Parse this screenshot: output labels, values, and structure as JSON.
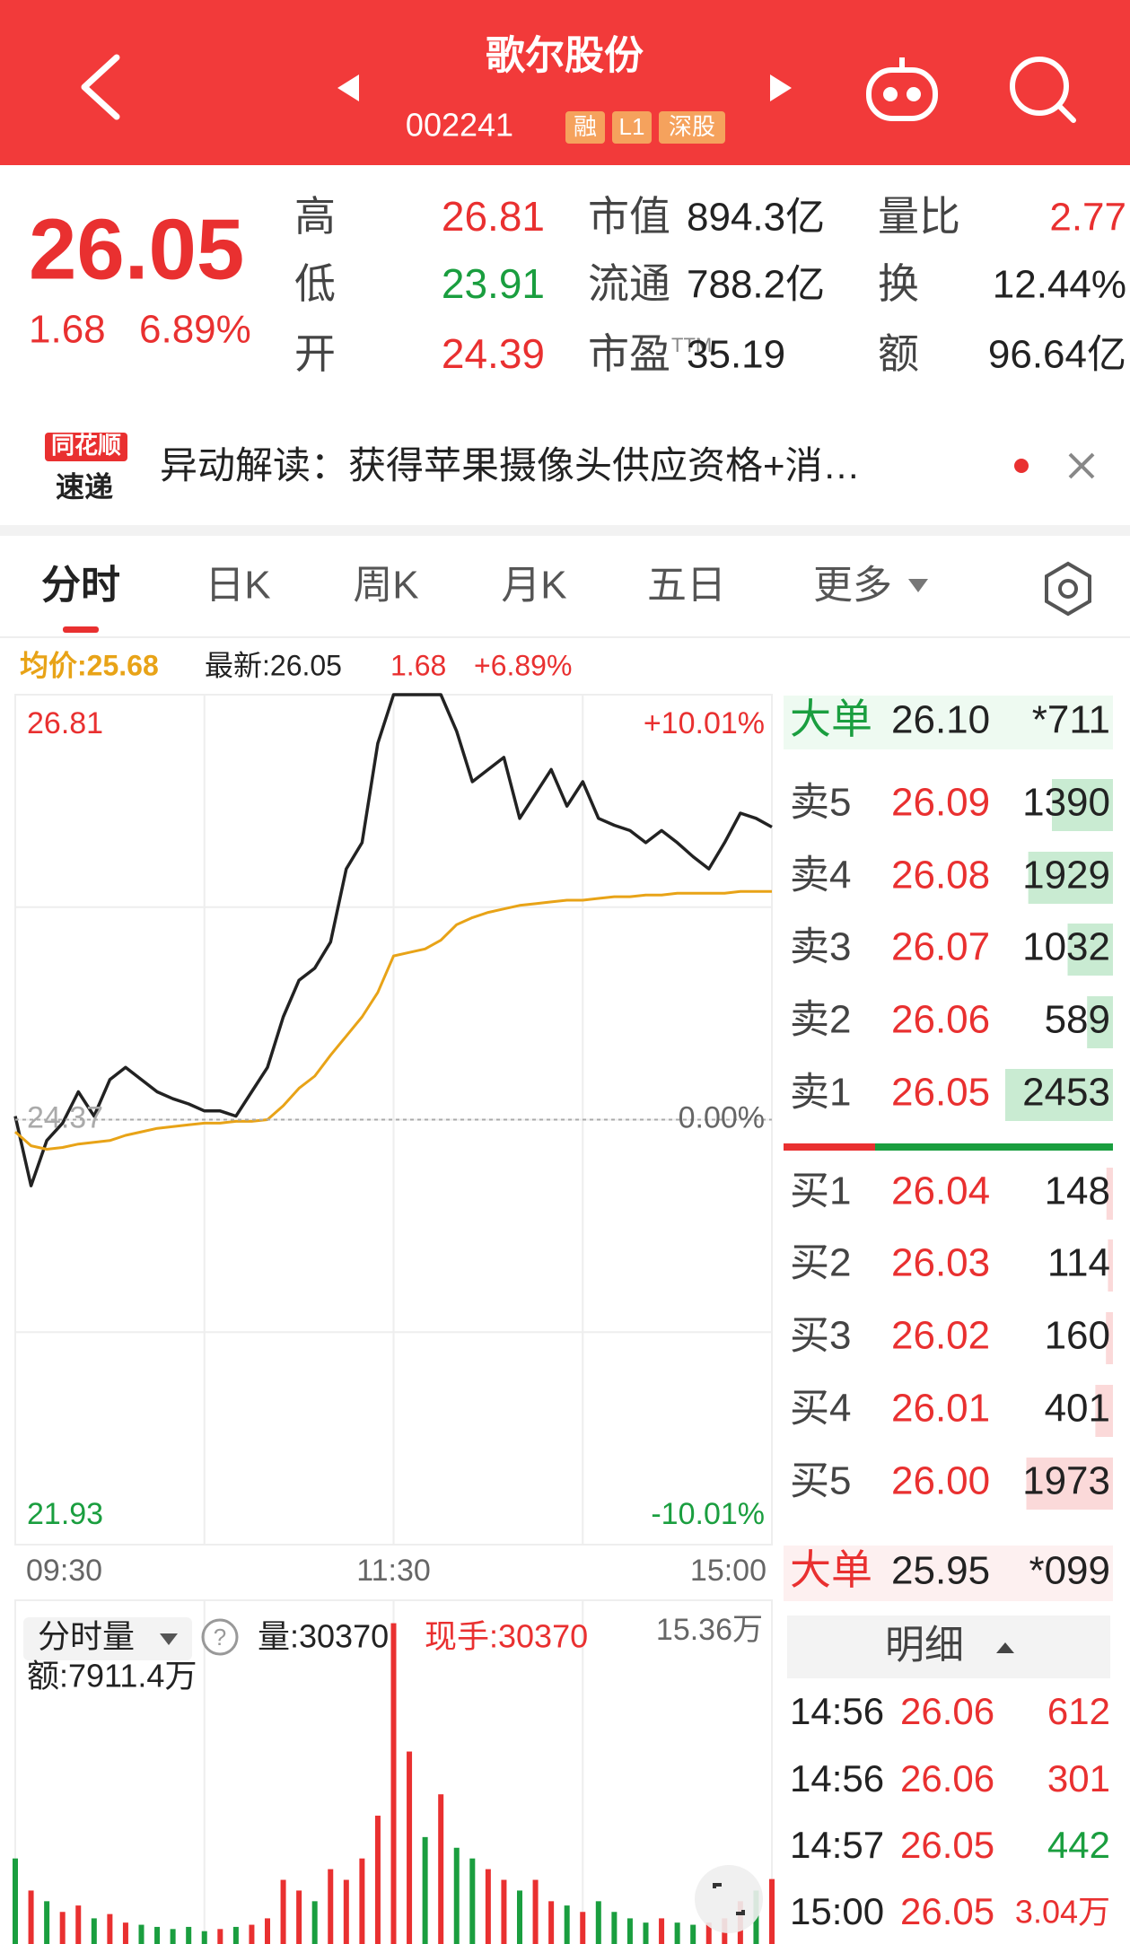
{
  "header": {
    "title": "歌尔股份",
    "code": "002241",
    "tags": [
      "融",
      "L1",
      "深股"
    ]
  },
  "quote": {
    "price": "26.05",
    "change": "1.68",
    "change_pct": "6.89%",
    "stats": [
      [
        {
          "label": "高",
          "value": "26.81",
          "color": "#e93030"
        },
        {
          "label": "市值",
          "value": "894.3亿",
          "color": "#222222"
        },
        {
          "label": "量比",
          "value": "2.77",
          "color": "#e93030"
        }
      ],
      [
        {
          "label": "低",
          "value": "23.91",
          "color": "#1a9e3f"
        },
        {
          "label": "流通",
          "value": "788.2亿",
          "color": "#222222"
        },
        {
          "label": "换",
          "value": "12.44%",
          "color": "#222222"
        }
      ],
      [
        {
          "label": "开",
          "value": "24.39",
          "color": "#e93030"
        },
        {
          "label": "市盈",
          "sup": "TTM",
          "value": "35.19",
          "color": "#222222"
        },
        {
          "label": "额",
          "value": "96.64亿",
          "color": "#222222"
        }
      ]
    ]
  },
  "news": {
    "logo_top": "同花顺",
    "logo_bottom": "速递",
    "text": "异动解读：获得苹果摄像头供应资格+消…"
  },
  "tabs": [
    "分时",
    "日K",
    "周K",
    "月K",
    "五日",
    "更多"
  ],
  "info": {
    "avg": "均价:25.68",
    "latest": "最新:26.05",
    "change": "1.68",
    "change_pct": "+6.89%"
  },
  "chart_data": [
    {
      "type": "line",
      "x": [
        0,
        5,
        10,
        15,
        20,
        25,
        30,
        35,
        40,
        45,
        50,
        55,
        60,
        65,
        70,
        75,
        80,
        85,
        90,
        95,
        100,
        105,
        110,
        115,
        120,
        125,
        130,
        135,
        140,
        145,
        150,
        155,
        160,
        165,
        170,
        175,
        180,
        185,
        190,
        195,
        200,
        205,
        210,
        215,
        220,
        225,
        230,
        235,
        240
      ],
      "xlim": [
        0,
        240
      ],
      "xticks": [
        {
          "value": 0,
          "label": "09:30"
        },
        {
          "value": 120,
          "label": "11:30"
        },
        {
          "value": 240,
          "label": "15:00"
        }
      ],
      "ylim": [
        21.93,
        26.81
      ],
      "yticks": [
        21.93,
        24.37,
        26.81
      ],
      "y2lim": [
        -10.01,
        10.01
      ],
      "y2ticks": [
        {
          "value": -10.01,
          "label": "-10.01%"
        },
        {
          "value": 0,
          "label": "0.00%"
        },
        {
          "value": 10.01,
          "label": "+10.01%"
        }
      ],
      "series": [
        {
          "color": "#222222",
          "values": [
            24.39,
            23.99,
            24.25,
            24.35,
            24.53,
            24.39,
            24.6,
            24.67,
            24.6,
            24.53,
            24.49,
            24.46,
            24.42,
            24.42,
            24.39,
            24.53,
            24.67,
            24.96,
            25.17,
            25.24,
            25.39,
            25.81,
            25.96,
            26.53,
            26.81,
            26.81,
            26.81,
            26.81,
            26.6,
            26.31,
            26.38,
            26.45,
            26.1,
            26.24,
            26.38,
            26.17,
            26.31,
            26.1,
            26.06,
            26.03,
            25.96,
            26.03,
            25.96,
            25.88,
            25.81,
            25.96,
            26.13,
            26.1,
            26.05
          ]
        },
        {
          "color": "#e8a317",
          "values": [
            24.3,
            24.22,
            24.2,
            24.21,
            24.23,
            24.24,
            24.25,
            24.28,
            24.3,
            24.32,
            24.33,
            24.34,
            24.35,
            24.35,
            24.36,
            24.36,
            24.37,
            24.45,
            24.55,
            24.62,
            24.74,
            24.85,
            24.96,
            25.1,
            25.31,
            25.33,
            25.35,
            25.4,
            25.49,
            25.53,
            25.56,
            25.58,
            25.6,
            25.61,
            25.62,
            25.63,
            25.63,
            25.64,
            25.65,
            25.65,
            25.66,
            25.66,
            25.67,
            25.67,
            25.67,
            25.67,
            25.68,
            25.68,
            25.68
          ]
        }
      ]
    },
    {
      "type": "bar",
      "title": "分时量",
      "annotations": [
        "量:30370",
        "现手:30370",
        "额:7911.4万"
      ],
      "x": [
        0,
        5,
        10,
        15,
        20,
        25,
        30,
        35,
        40,
        45,
        50,
        55,
        60,
        65,
        70,
        75,
        80,
        85,
        90,
        95,
        100,
        105,
        110,
        115,
        120,
        125,
        130,
        135,
        140,
        145,
        150,
        155,
        160,
        165,
        170,
        175,
        180,
        185,
        190,
        195,
        200,
        205,
        210,
        215,
        220,
        225,
        230,
        235,
        240
      ],
      "xlim": [
        0,
        240
      ],
      "ylim": [
        0,
        153600
      ],
      "yticks": [
        {
          "value": 153600,
          "label": "15.36万"
        }
      ],
      "values": [
        40000,
        25000,
        20000,
        15000,
        18000,
        12000,
        14000,
        10000,
        9000,
        8000,
        7000,
        8000,
        6000,
        7000,
        8000,
        9000,
        12000,
        30000,
        25000,
        20000,
        35000,
        30000,
        40000,
        60000,
        150000,
        90000,
        50000,
        70000,
        45000,
        40000,
        35000,
        30000,
        25000,
        30000,
        20000,
        18000,
        15000,
        20000,
        15000,
        12000,
        10000,
        12000,
        10000,
        9000,
        10000,
        12000,
        20000,
        25000,
        30370
      ],
      "colors": [
        "#1a9e3f",
        "#e93030",
        "#1a9e3f",
        "#e93030",
        "#e93030",
        "#1a9e3f",
        "#e93030",
        "#e93030",
        "#1a9e3f",
        "#1a9e3f",
        "#1a9e3f",
        "#1a9e3f",
        "#1a9e3f",
        "#e93030",
        "#1a9e3f",
        "#e93030",
        "#e93030",
        "#e93030",
        "#e93030",
        "#1a9e3f",
        "#e93030",
        "#e93030",
        "#e93030",
        "#e93030",
        "#e93030",
        "#e93030",
        "#1a9e3f",
        "#e93030",
        "#1a9e3f",
        "#1a9e3f",
        "#e93030",
        "#e93030",
        "#1a9e3f",
        "#e93030",
        "#e93030",
        "#1a9e3f",
        "#e93030",
        "#1a9e3f",
        "#1a9e3f",
        "#1a9e3f",
        "#1a9e3f",
        "#e93030",
        "#1a9e3f",
        "#1a9e3f",
        "#e93030",
        "#e93030",
        "#e93030",
        "#1a9e3f",
        "#e93030"
      ]
    }
  ],
  "order_book": {
    "big_sell": {
      "label": "大单",
      "price": "26.10",
      "volume": "*711"
    },
    "asks": [
      {
        "label": "卖5",
        "price": "26.09",
        "volume": 1390
      },
      {
        "label": "卖4",
        "price": "26.08",
        "volume": 1929
      },
      {
        "label": "卖3",
        "price": "26.07",
        "volume": 1032
      },
      {
        "label": "卖2",
        "price": "26.06",
        "volume": 589
      },
      {
        "label": "卖1",
        "price": "26.05",
        "volume": 2453
      }
    ],
    "bids": [
      {
        "label": "买1",
        "price": "26.04",
        "volume": 148
      },
      {
        "label": "买2",
        "price": "26.03",
        "volume": 114
      },
      {
        "label": "买3",
        "price": "26.02",
        "volume": 160
      },
      {
        "label": "买4",
        "price": "26.01",
        "volume": 401
      },
      {
        "label": "买5",
        "price": "26.00",
        "volume": 1973
      }
    ],
    "big_buy": {
      "label": "大单",
      "price": "25.95",
      "volume": "*099"
    },
    "detail_title": "明细",
    "trades": [
      {
        "time": "14:56",
        "price": "26.06",
        "volume": "612",
        "color": "#e93030"
      },
      {
        "time": "14:56",
        "price": "26.06",
        "volume": "301",
        "color": "#e93030"
      },
      {
        "time": "14:57",
        "price": "26.05",
        "volume": "442",
        "color": "#1a9e3f"
      },
      {
        "time": "15:00",
        "price": "26.05",
        "volume": "3.04万",
        "color": "#e93030"
      }
    ]
  }
}
